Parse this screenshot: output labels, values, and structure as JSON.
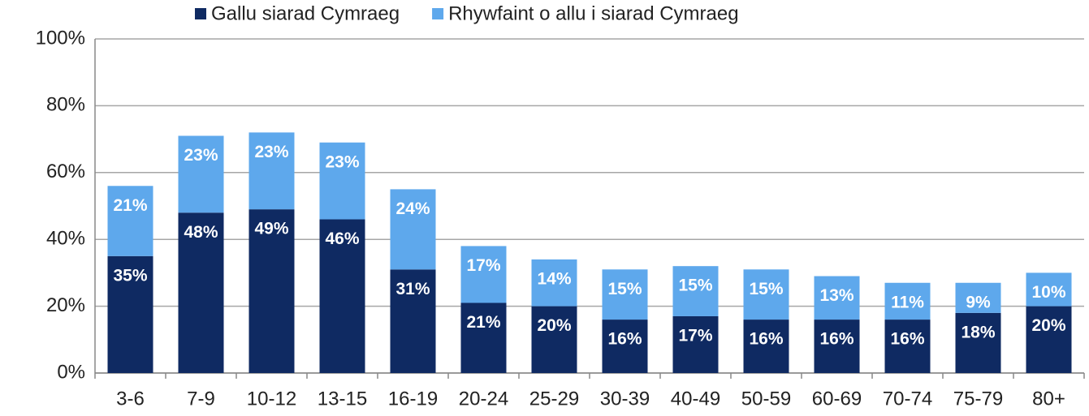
{
  "chart_data": {
    "type": "stacked_bar",
    "categories": [
      "3-6",
      "7-9",
      "10-12",
      "13-15",
      "16-19",
      "20-24",
      "25-29",
      "30-39",
      "40-49",
      "50-59",
      "60-69",
      "70-74",
      "75-79",
      "80+"
    ],
    "series": [
      {
        "name": "Gallu siarad Cymraeg",
        "color": "#0f2a62",
        "values": [
          35,
          48,
          49,
          46,
          31,
          21,
          20,
          16,
          17,
          16,
          16,
          16,
          18,
          20
        ],
        "value_labels": [
          "35%",
          "48%",
          "49%",
          "46%",
          "31%",
          "21%",
          "20%",
          "16%",
          "17%",
          "16%",
          "16%",
          "16%",
          "18%",
          "20%"
        ]
      },
      {
        "name": "Rhywfaint o allu i siarad Cymraeg",
        "color": "#5ea8ec",
        "values": [
          21,
          23,
          23,
          23,
          24,
          17,
          14,
          15,
          15,
          15,
          13,
          11,
          9,
          10
        ],
        "value_labels": [
          "21%",
          "23%",
          "23%",
          "23%",
          "24%",
          "17%",
          "14%",
          "15%",
          "15%",
          "15%",
          "13%",
          "11%",
          "9%",
          "10%"
        ]
      }
    ],
    "ylim": [
      0,
      100
    ],
    "yticks": [
      {
        "value": 0,
        "label": "0%"
      },
      {
        "value": 20,
        "label": "20%"
      },
      {
        "value": 40,
        "label": "40%"
      },
      {
        "value": 60,
        "label": "60%"
      },
      {
        "value": 80,
        "label": "80%"
      },
      {
        "value": 100,
        "label": "100%"
      }
    ],
    "grid": true,
    "legend": "top"
  }
}
